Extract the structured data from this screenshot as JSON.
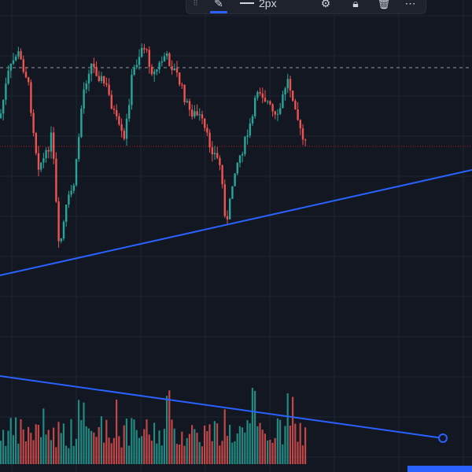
{
  "toolbar": {
    "grip_icon": "drag-handle-icon",
    "pen_icon": "pencil-icon",
    "line_width_label": "2px",
    "gear_icon": "gear-icon",
    "lock_icon": "lock-icon",
    "trash_icon": "trash-icon",
    "more_icon": "more-icon"
  },
  "colors": {
    "background": "#131722",
    "grid": "#1e2431",
    "up": "#26a69a",
    "down": "#ef5350",
    "trendline": "#2962ff",
    "price_line": "#b71c1c",
    "high_line": "#9598a1"
  },
  "chart_data": {
    "type": "candlestick",
    "trendline_price": {
      "from": [
        0,
        350
      ],
      "to": [
        600,
        216
      ]
    },
    "trendline_volume": {
      "from": [
        0,
        478
      ],
      "to": [
        563,
        557
      ]
    },
    "seed": 7
  }
}
